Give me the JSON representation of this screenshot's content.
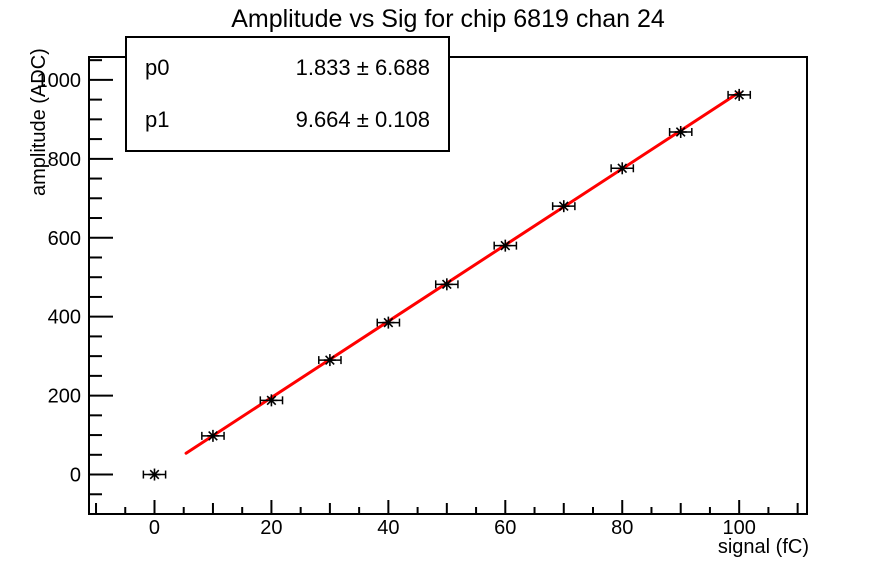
{
  "title": "Amplitude vs Sig for chip 6819 chan 24",
  "stats_box": {
    "rows": [
      {
        "name": "p0",
        "value": "1.833 ± 6.688"
      },
      {
        "name": "p1",
        "value": "9.664 ± 0.108"
      }
    ]
  },
  "chart_data": {
    "type": "scatter",
    "title": "Amplitude vs Sig for chip 6819 chan 24",
    "xlabel": "signal (fC)",
    "ylabel": "amplitude (ADC)",
    "xlim": [
      -11.2,
      111.6
    ],
    "ylim": [
      -100,
      1058
    ],
    "x_ticks": [
      0,
      20,
      40,
      60,
      80,
      100
    ],
    "x_minor_step": 5,
    "y_ticks": [
      0,
      200,
      400,
      600,
      800,
      1000
    ],
    "y_minor_step": 50,
    "grid": false,
    "legend": "none",
    "points": {
      "x": [
        0,
        10,
        20,
        30,
        40,
        50,
        60,
        70,
        80,
        90,
        100
      ],
      "y": [
        0,
        98,
        188,
        290,
        385,
        482,
        580,
        680,
        776,
        868,
        962
      ],
      "x_error": 1.9,
      "marker": "asterisk",
      "color": "#000000"
    },
    "fit": {
      "p0": 1.833,
      "p0_err": 6.688,
      "p1": 9.664,
      "p1_err": 0.108,
      "draw_range": [
        5.4,
        100
      ],
      "color": "#ff0000"
    },
    "frame_color": "#000000",
    "background_color": "#ffffff"
  }
}
